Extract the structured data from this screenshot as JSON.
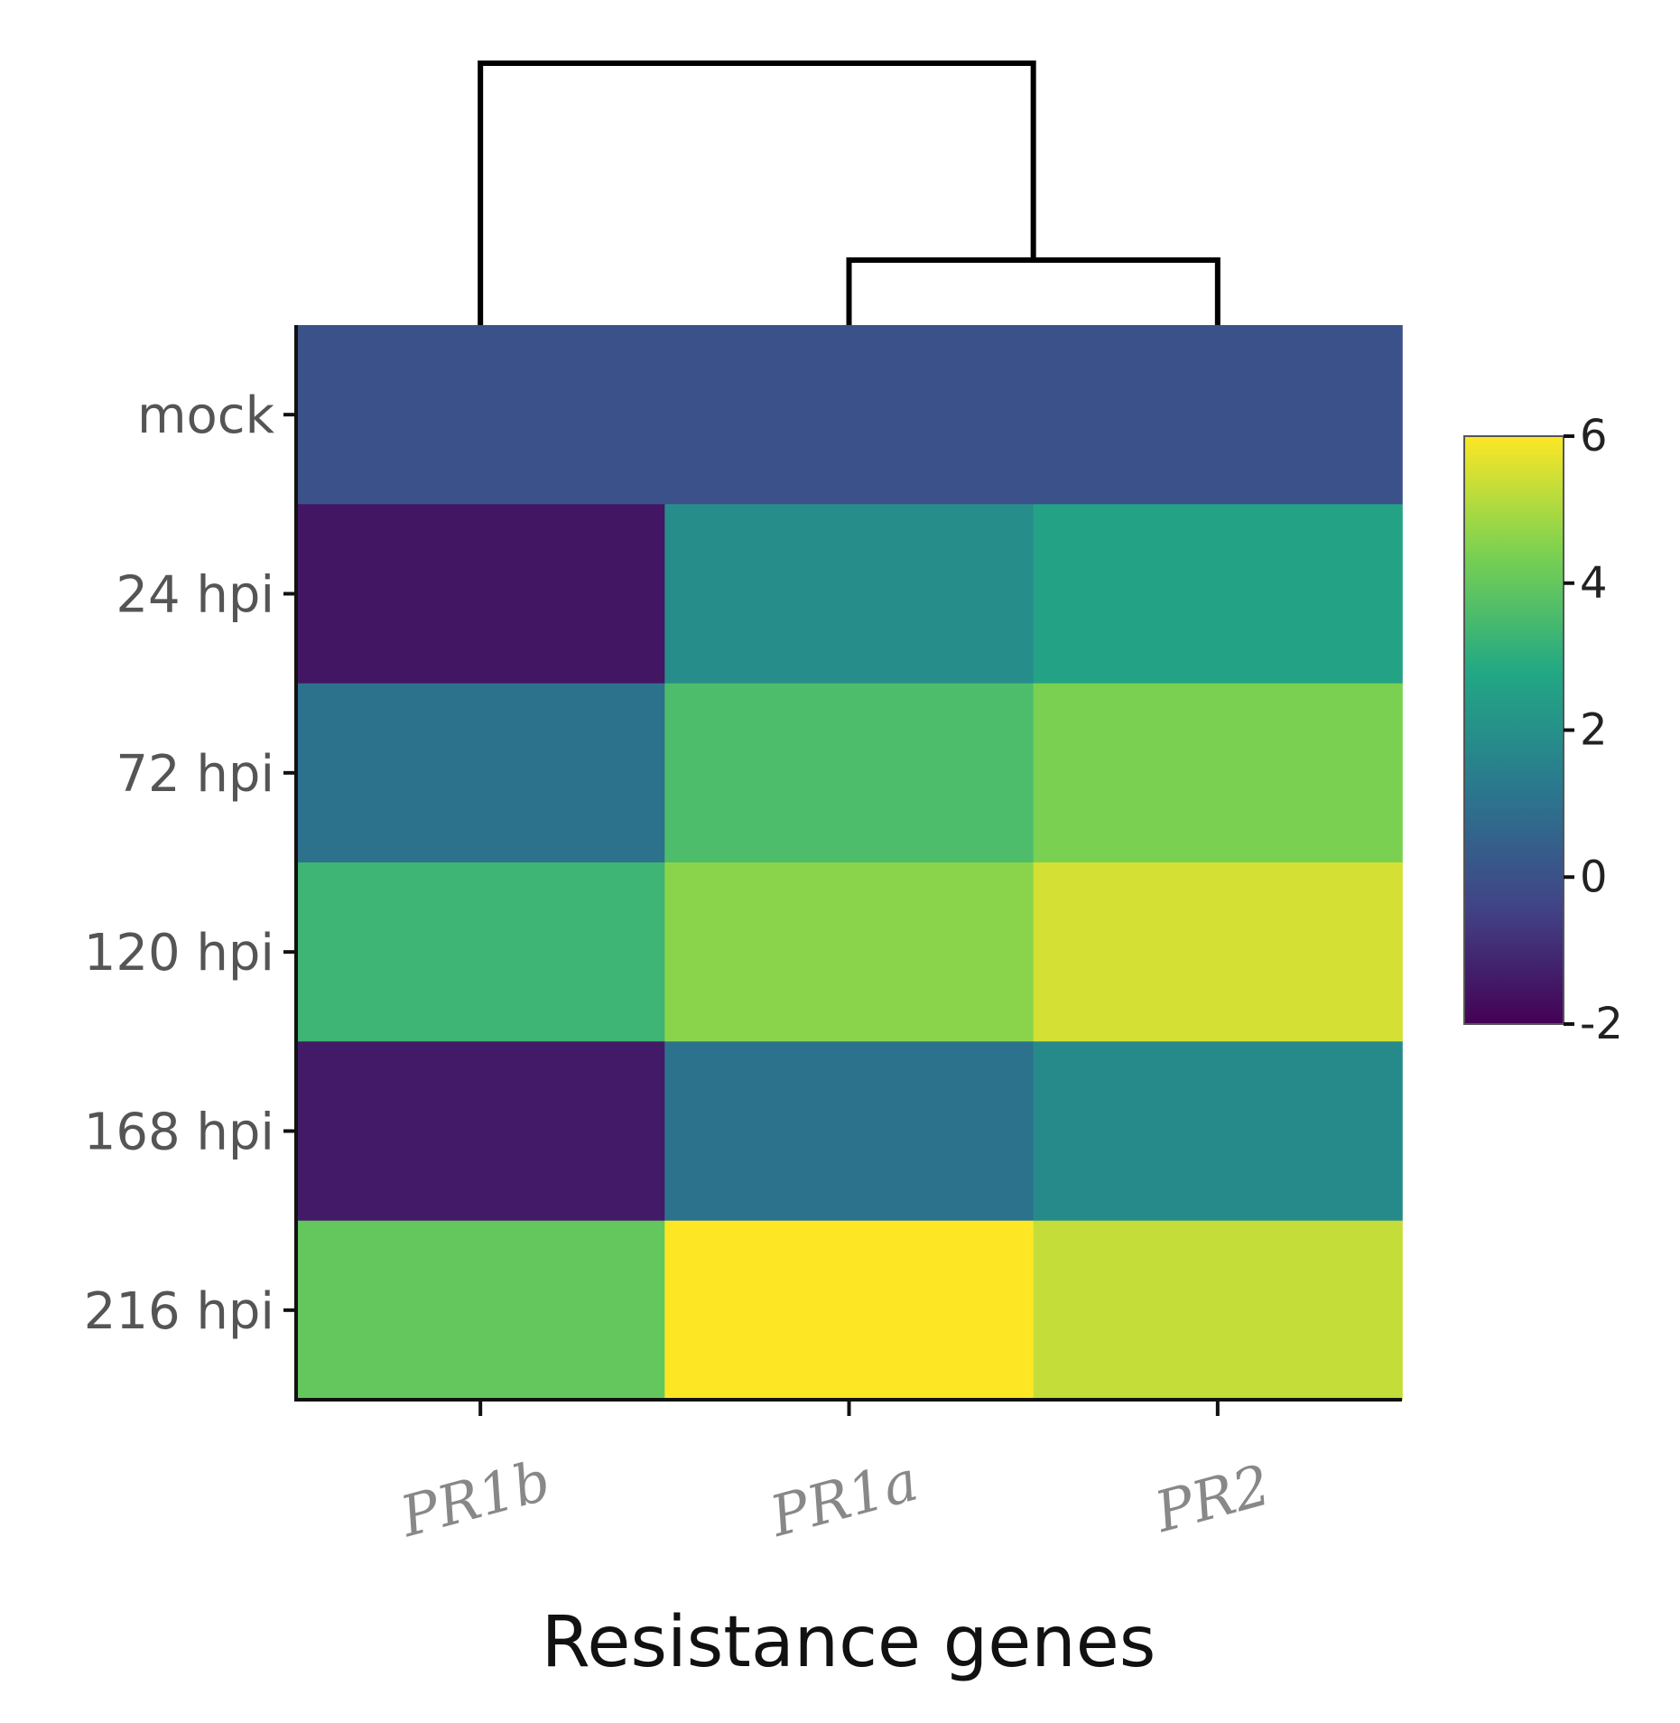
{
  "chart_data": {
    "type": "heatmap",
    "xlabel": "Resistance genes",
    "ylabel": "",
    "columns": [
      "PR1b",
      "PR1a",
      "PR2"
    ],
    "rows": [
      "mock",
      "24 hpi",
      "72 hpi",
      "120 hpi",
      "168 hpi",
      "216 hpi"
    ],
    "values": [
      [
        0.0,
        0.0,
        0.0
      ],
      [
        -1.5,
        1.9,
        2.6
      ],
      [
        1.0,
        3.6,
        4.4
      ],
      [
        3.3,
        4.6,
        5.5
      ],
      [
        -1.4,
        1.0,
        1.8
      ],
      [
        4.0,
        6.0,
        5.3
      ]
    ],
    "colorbar": {
      "range": [
        -2,
        6
      ],
      "ticks": [
        6,
        4,
        2,
        0,
        -2
      ],
      "colors": [
        "#440154",
        "#414487",
        "#2a788e",
        "#22a884",
        "#7ad151",
        "#fde725"
      ]
    },
    "dendrogram": {
      "axis": "columns",
      "merges": [
        [
          "PR1a",
          "PR2"
        ],
        [
          "PR1b",
          "PR1a+PR2"
        ]
      ]
    }
  }
}
